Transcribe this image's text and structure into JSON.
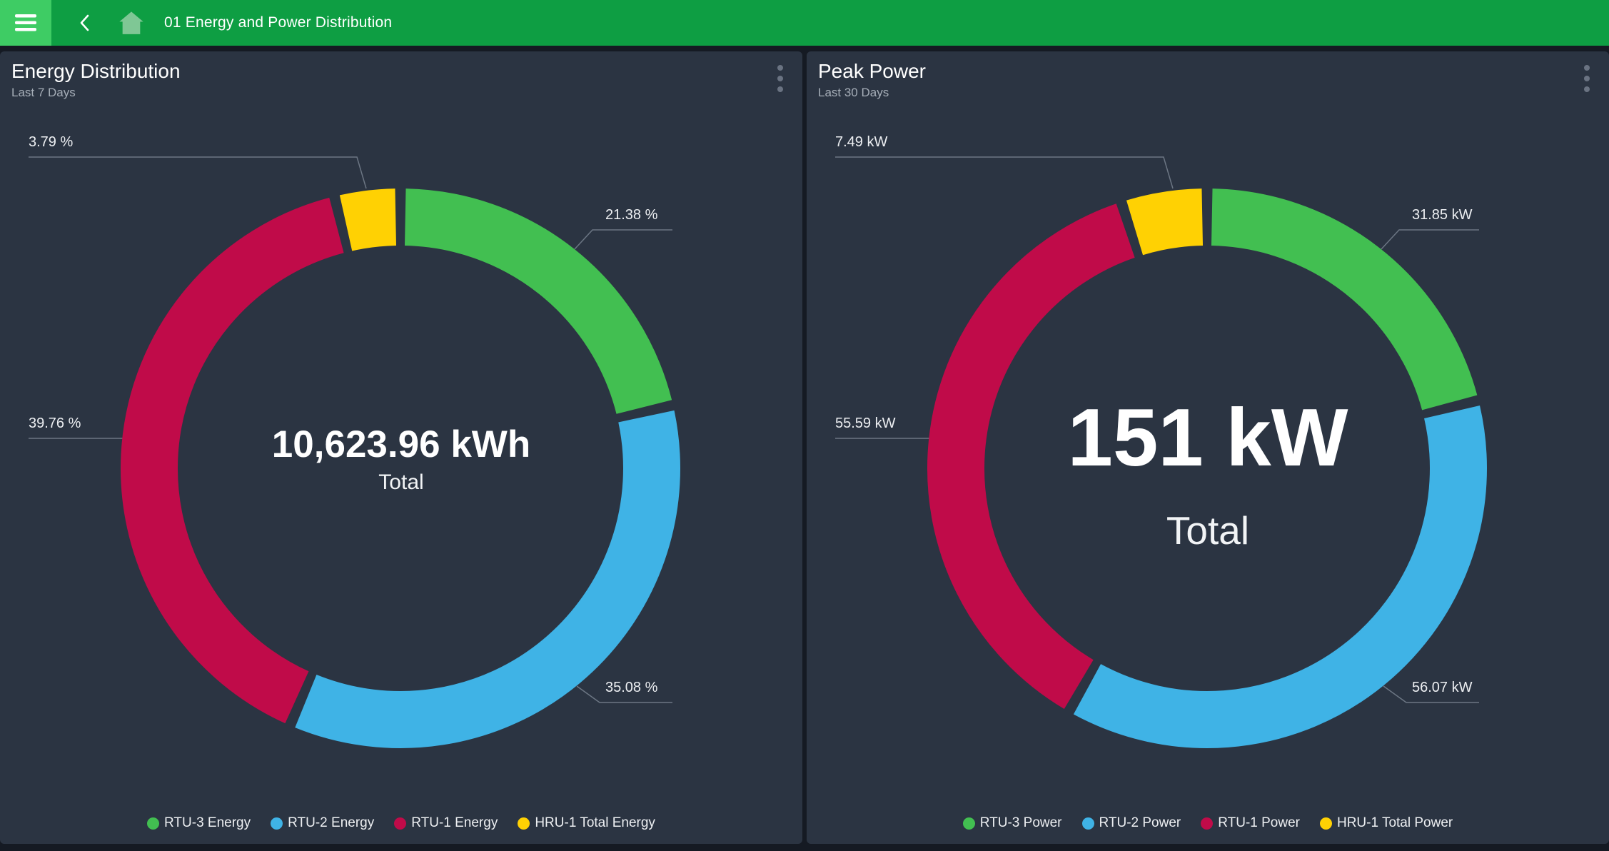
{
  "header": {
    "title": "01 Energy and Power Distribution",
    "icons": {
      "menu": "hamburger-icon",
      "back": "chevron-left-icon",
      "home": "home-icon",
      "card_menu": "kebab-menu-icon"
    },
    "colors": {
      "bar": "#0E9E43",
      "menu_button": "#3ECC64",
      "home_icon": "#7FC795"
    }
  },
  "colors": {
    "page_background": "#151A23",
    "card_background": "#2B3442",
    "subtitle_text": "#A6AEB8",
    "leader_line": "#78828F",
    "green": "#42BF51",
    "blue": "#3FB3E6",
    "crimson": "#C00B49",
    "yellow": "#FFD103"
  },
  "chart_data": [
    {
      "type": "donut",
      "title": "Energy Distribution",
      "subtitle": "Last 7 Days",
      "unit": "%",
      "center_value": "10,623.96 kWh",
      "center_label": "Total",
      "legend_position": "bottom-center",
      "series": [
        {
          "name": "RTU-3 Energy",
          "value": 21.38,
          "label": "21.38 %",
          "color": "#42BF51"
        },
        {
          "name": "RTU-2 Energy",
          "value": 35.08,
          "label": "35.08 %",
          "color": "#3FB3E6"
        },
        {
          "name": "RTU-1 Energy",
          "value": 39.76,
          "label": "39.76 %",
          "color": "#C00B49"
        },
        {
          "name": "HRU-1 Total Energy",
          "value": 3.79,
          "label": "3.79 %",
          "color": "#FFD103"
        }
      ]
    },
    {
      "type": "donut",
      "title": "Peak Power",
      "subtitle": "Last 30 Days",
      "unit": "kW",
      "center_value": "151 kW",
      "center_label": "Total",
      "legend_position": "bottom-center",
      "series": [
        {
          "name": "RTU-3 Power",
          "value": 31.85,
          "label": "31.85 kW",
          "color": "#42BF51"
        },
        {
          "name": "RTU-2 Power",
          "value": 56.07,
          "label": "56.07 kW",
          "color": "#3FB3E6"
        },
        {
          "name": "RTU-1 Power",
          "value": 55.59,
          "label": "55.59 kW",
          "color": "#C00B49"
        },
        {
          "name": "HRU-1 Total Power",
          "value": 7.49,
          "label": "7.49 kW",
          "color": "#FFD103"
        }
      ]
    }
  ]
}
